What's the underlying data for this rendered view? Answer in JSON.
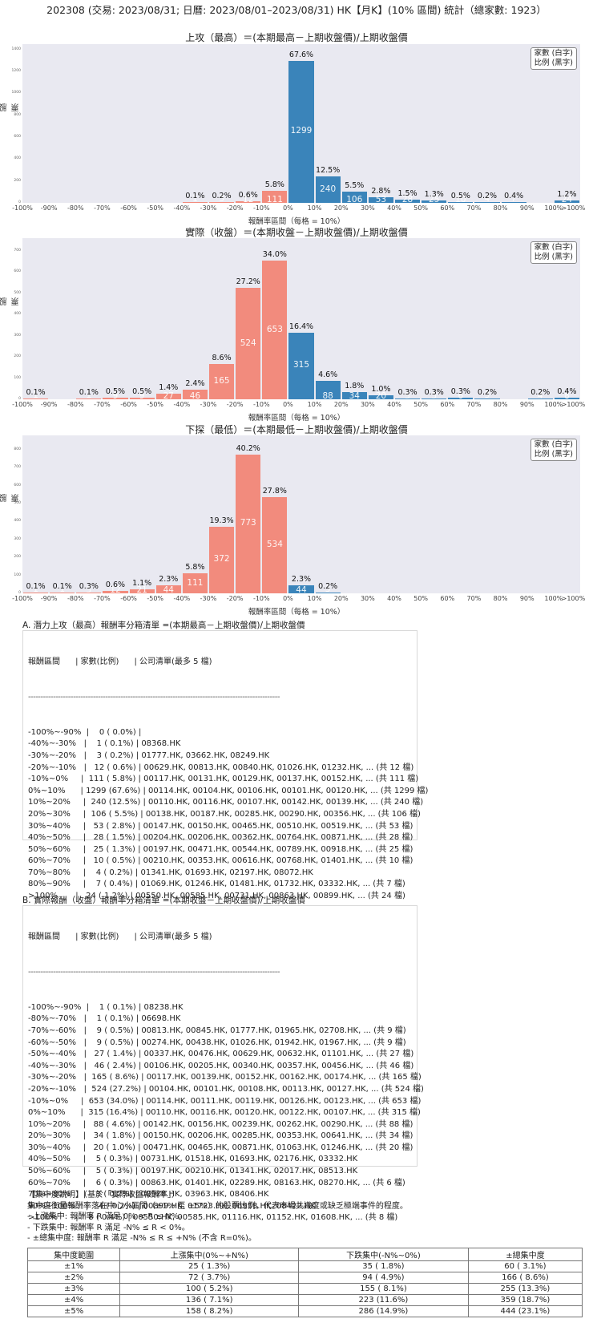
{
  "header": {
    "title": "202308 (交易: 2023/08/31; 日曆: 2023/08/01–2023/08/31) HK【月K】(10% 區間) 統計（總家數: 1923）"
  },
  "legend": {
    "line1": "家數 (白字)",
    "line2": "比例 (黑字)"
  },
  "colors": {
    "negative": "#f28b7d",
    "positive": "#3a84ba",
    "plot_bg": "#e9e9f1"
  },
  "chart_data": [
    {
      "type": "bar",
      "title": "上攻（最高）＝(本期最高－上期收盤價)/上期收盤價",
      "xlabel": "報酬率區間（每格 = 10%）",
      "ylabel": "股票家數",
      "ylim": [
        0,
        1450
      ],
      "yticks": [
        0,
        200,
        400,
        600,
        800,
        1000,
        1200,
        1400
      ],
      "xticks": [
        "-100%",
        "-90%",
        "-80%",
        "-70%",
        "-60%",
        "-50%",
        "-40%",
        "-30%",
        "-20%",
        "-10%",
        "0%",
        "10%",
        "20%",
        "30%",
        "40%",
        "50%",
        "60%",
        "70%",
        "80%",
        "90%",
        "100%",
        ">100%"
      ],
      "categories": [
        "-100~-90",
        "-90~-80",
        "-80~-70",
        "-70~-60",
        "-60~-50",
        "-50~-40",
        "-40~-30",
        "-30~-20",
        "-20~-10",
        "-10~0",
        "0~10",
        "10~20",
        "20~30",
        "30~40",
        "40~50",
        "50~60",
        "60~70",
        "70~80",
        "80~90",
        "90~100",
        ">100"
      ],
      "values": [
        0,
        0,
        0,
        0,
        0,
        0,
        1,
        3,
        12,
        111,
        1299,
        240,
        106,
        53,
        28,
        25,
        10,
        4,
        7,
        0,
        24
      ],
      "percent_labels": [
        "",
        "",
        "",
        "",
        "",
        "",
        "0.1%",
        "0.2%",
        "0.6%",
        "5.8%",
        "67.6%",
        "12.5%",
        "5.5%",
        "2.8%",
        "1.5%",
        "1.3%",
        "0.5%",
        "0.2%",
        "0.4%",
        "",
        "1.2%"
      ]
    },
    {
      "type": "bar",
      "title": "實際（收盤）＝(本期收盤－上期收盤價)/上期收盤價",
      "xlabel": "報酬率區間（每格 = 10%）",
      "ylabel": "股票家數",
      "ylim": [
        0,
        760
      ],
      "yticks": [
        0,
        100,
        200,
        300,
        400,
        500,
        600,
        700
      ],
      "xticks": [
        "-100%",
        "-90%",
        "-80%",
        "-70%",
        "-60%",
        "-50%",
        "-40%",
        "-30%",
        "-20%",
        "-10%",
        "0%",
        "10%",
        "20%",
        "30%",
        "40%",
        "50%",
        "60%",
        "70%",
        "80%",
        "90%",
        "100%",
        ">100%"
      ],
      "categories": [
        "-100~-90",
        "-90~-80",
        "-80~-70",
        "-70~-60",
        "-60~-50",
        "-50~-40",
        "-40~-30",
        "-30~-20",
        "-20~-10",
        "-10~0",
        "0~10",
        "10~20",
        "20~30",
        "30~40",
        "40~50",
        "50~60",
        "60~70",
        "70~80",
        "80~90",
        "90~100",
        ">100"
      ],
      "values": [
        1,
        0,
        1,
        9,
        9,
        27,
        46,
        165,
        524,
        653,
        315,
        88,
        34,
        20,
        5,
        5,
        6,
        3,
        0,
        4,
        8
      ],
      "percent_labels": [
        "0.1%",
        "",
        "0.1%",
        "0.5%",
        "0.5%",
        "1.4%",
        "2.4%",
        "8.6%",
        "27.2%",
        "34.0%",
        "16.4%",
        "4.6%",
        "1.8%",
        "1.0%",
        "0.3%",
        "0.3%",
        "0.3%",
        "0.2%",
        "",
        "0.2%",
        "0.4%"
      ]
    },
    {
      "type": "bar",
      "title": "下探（最低）＝(本期最低－上期收盤價)/上期收盤價",
      "xlabel": "報酬率區間（每格 = 10%）",
      "ylabel": "股票家數",
      "ylim": [
        0,
        880
      ],
      "yticks": [
        0,
        100,
        200,
        300,
        400,
        500,
        600,
        700,
        800
      ],
      "xticks": [
        "-100%",
        "-90%",
        "-80%",
        "-70%",
        "-60%",
        "-50%",
        "-40%",
        "-30%",
        "-20%",
        "-10%",
        "0%",
        "10%",
        "20%",
        "30%",
        "40%",
        "50%",
        "60%",
        "70%",
        "80%",
        "90%",
        "100%",
        ">100%"
      ],
      "categories": [
        "-100~-90",
        "-90~-80",
        "-80~-70",
        "-70~-60",
        "-60~-50",
        "-50~-40",
        "-40~-30",
        "-30~-20",
        "-20~-10",
        "-10~0",
        "0~10",
        "10~20",
        "20~30",
        "30~40",
        "40~50",
        "50~60",
        "60~70",
        "70~80",
        "80~90",
        "90~100",
        ">100"
      ],
      "values": [
        1,
        1,
        5,
        12,
        21,
        44,
        111,
        372,
        773,
        534,
        44,
        3,
        0,
        0,
        0,
        0,
        0,
        0,
        0,
        0,
        0
      ],
      "percent_labels": [
        "0.1%",
        "0.1%",
        "0.3%",
        "0.6%",
        "1.1%",
        "2.3%",
        "5.8%",
        "19.3%",
        "40.2%",
        "27.8%",
        "2.3%",
        "0.2%",
        "",
        "",
        "",
        "",
        "",
        "",
        "",
        "",
        ""
      ]
    }
  ],
  "list_a": {
    "title": "A. 潛力上攻（最高）報酬率分箱清單 =(本期最高－上期收盤價)/上期收盤價",
    "header": "報酬區間      | 家數(比例)      | 公司清單(最多 5 檔)",
    "separator": "-----------------------------------------------------------------------------------------------------",
    "rows": [
      "-100%~-90%  |    0 ( 0.0%) |",
      "-40%~-30%   |    1 ( 0.1%) | 08368.HK",
      "-30%~-20%   |    3 ( 0.2%) | 01777.HK, 03662.HK, 08249.HK",
      "-20%~-10%   |   12 ( 0.6%) | 00629.HK, 00813.HK, 00840.HK, 01026.HK, 01232.HK, ... (共 12 檔)",
      "-10%~0%     |  111 ( 5.8%) | 00117.HK, 00131.HK, 00129.HK, 00137.HK, 00152.HK, ... (共 111 檔)",
      "0%~10%      | 1299 (67.6%) | 00114.HK, 00104.HK, 00106.HK, 00101.HK, 00120.HK, ... (共 1299 檔)",
      "10%~20%     |  240 (12.5%) | 00110.HK, 00116.HK, 00107.HK, 00142.HK, 00139.HK, ... (共 240 檔)",
      "20%~30%     |  106 ( 5.5%) | 00138.HK, 00187.HK, 00285.HK, 00290.HK, 00356.HK, ... (共 106 檔)",
      "30%~40%     |   53 ( 2.8%) | 00147.HK, 00150.HK, 00465.HK, 00510.HK, 00519.HK, ... (共 53 檔)",
      "40%~50%     |   28 ( 1.5%) | 00204.HK, 00206.HK, 00362.HK, 00764.HK, 00871.HK, ... (共 28 檔)",
      "50%~60%     |   25 ( 1.3%) | 00197.HK, 00471.HK, 00544.HK, 00789.HK, 00918.HK, ... (共 25 檔)",
      "60%~70%     |   10 ( 0.5%) | 00210.HK, 00353.HK, 00616.HK, 00768.HK, 01401.HK, ... (共 10 檔)",
      "70%~80%     |    4 ( 0.2%) | 01341.HK, 01693.HK, 02197.HK, 08072.HK",
      "80%~90%     |    7 ( 0.4%) | 01069.HK, 01246.HK, 01481.HK, 01732.HK, 03332.HK, ... (共 7 檔)",
      ">100%       |   24 ( 1.2%) | 00550.HK, 00585.HK, 00731.HK, 00863.HK, 00899.HK, ... (共 24 檔)"
    ]
  },
  "list_b": {
    "title": "B. 實際報酬（收盤）報酬率分箱清單 =(本期收盤－上期收盤價)/上期收盤價",
    "header": "報酬區間      | 家數(比例)      | 公司清單(最多 5 檔)",
    "separator": "-----------------------------------------------------------------------------------------------------",
    "rows": [
      "-100%~-90%  |    1 ( 0.1%) | 08238.HK",
      "-80%~-70%   |    1 ( 0.1%) | 06698.HK",
      "-70%~-60%   |    9 ( 0.5%) | 00813.HK, 00845.HK, 01777.HK, 01965.HK, 02708.HK, ... (共 9 檔)",
      "-60%~-50%   |    9 ( 0.5%) | 00274.HK, 00438.HK, 01026.HK, 01942.HK, 01967.HK, ... (共 9 檔)",
      "-50%~-40%   |   27 ( 1.4%) | 00337.HK, 00476.HK, 00629.HK, 00632.HK, 01101.HK, ... (共 27 檔)",
      "-40%~-30%   |   46 ( 2.4%) | 00106.HK, 00205.HK, 00340.HK, 00357.HK, 00456.HK, ... (共 46 檔)",
      "-30%~-20%   |  165 ( 8.6%) | 00117.HK, 00139.HK, 00152.HK, 00162.HK, 00174.HK, ... (共 165 檔)",
      "-20%~-10%   |  524 (27.2%) | 00104.HK, 00101.HK, 00108.HK, 00113.HK, 00127.HK, ... (共 524 檔)",
      "-10%~0%     |  653 (34.0%) | 00114.HK, 00111.HK, 00119.HK, 00126.HK, 00123.HK, ... (共 653 檔)",
      "0%~10%      |  315 (16.4%) | 00110.HK, 00116.HK, 00120.HK, 00122.HK, 00107.HK, ... (共 315 檔)",
      "10%~20%     |   88 ( 4.6%) | 00142.HK, 00156.HK, 00239.HK, 00262.HK, 00290.HK, ... (共 88 檔)",
      "20%~30%     |   34 ( 1.8%) | 00150.HK, 00206.HK, 00285.HK, 00353.HK, 00641.HK, ... (共 34 檔)",
      "30%~40%     |   20 ( 1.0%) | 00471.HK, 00465.HK, 00871.HK, 01063.HK, 01246.HK, ... (共 20 檔)",
      "40%~50%     |    5 ( 0.3%) | 00731.HK, 01518.HK, 01693.HK, 02176.HK, 03332.HK",
      "50%~60%     |    5 ( 0.3%) | 00197.HK, 00210.HK, 01341.HK, 02017.HK, 08513.HK",
      "60%~70%     |    6 ( 0.3%) | 00863.HK, 01401.HK, 02289.HK, 08163.HK, 08270.HK, ... (共 6 檔)",
      "70%~80%     |    3 ( 0.2%) | 00928.HK, 03963.HK, 08406.HK",
      "90%~100%    |    4 ( 0.2%) | 00899.HK, 01723.HK, 06918.HK, 08422.HK",
      ">100%       |    8 ( 0.4%) | 00550.HK, 00585.HK, 01116.HK, 01152.HK, 01608.HK, ... (共 8 檔)"
    ]
  },
  "concentration": {
    "title": "【集中度說明】（基於「實際收盤報酬率」）",
    "description": "集中度衡量報酬率落在中心小區間（±1% 至 ±5%）的股票比例，代表市場共識度或缺乏極端事件的程度。",
    "rules": [
      " - 上漲集中: 報酬率 R 滿足 0% < R ≤ N%。",
      " - 下跌集中: 報酬率 R 滿足 -N% ≤ R < 0%。",
      " - ±總集中度: 報酬率 R 滿足 -N% ≤ R ≤ +N% (不含 R=0%)。"
    ],
    "columns": [
      "集中度範圍",
      "上漲集中(0%~+N%)",
      "下跌集中(-N%~0%)",
      "±總集中度"
    ],
    "rows": [
      [
        "±1%",
        "25 ( 1.3%)",
        "35 ( 1.8%)",
        "60 ( 3.1%)"
      ],
      [
        "±2%",
        "72 ( 3.7%)",
        "94 ( 4.9%)",
        "166 ( 8.6%)"
      ],
      [
        "±3%",
        "100 ( 5.2%)",
        "155 ( 8.1%)",
        "255 (13.3%)"
      ],
      [
        "±4%",
        "136 ( 7.1%)",
        "223 (11.6%)",
        "359 (18.7%)"
      ],
      [
        "±5%",
        "158 ( 8.2%)",
        "286 (14.9%)",
        "444 (23.1%)"
      ]
    ]
  }
}
